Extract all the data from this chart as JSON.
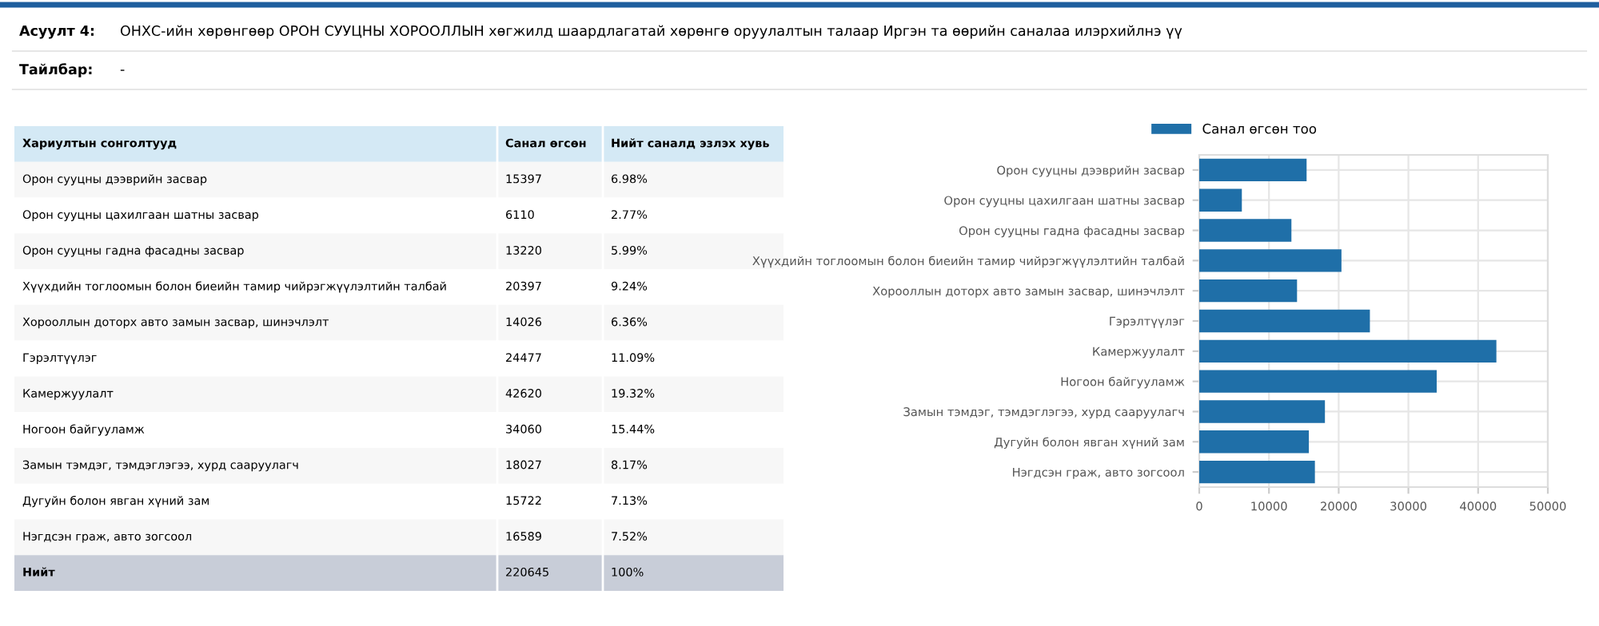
{
  "chart_data": [
    {
      "type": "other",
      "annotations": [
        "Асуулт 4:",
        "ОНХС-ийн хөрөнгөөр ОРОН СУУЦНЫ ХОРООЛЛЫН хөгжилд шаардлагатай хөрөнгө оруулалтын талаар Иргэн та өөрийн саналаа илэрхийлнэ үү",
        "Тайлбар:",
        "-"
      ]
    },
    {
      "type": "other",
      "annotations": [
        "Хариултын сонголтууд",
        "Нийт",
        "220645",
        "100%"
      ],
      "categories": [
        "Орон сууцны дээврийн засвар",
        "Орон сууцны цахилгаан шатны засвар",
        "Орон сууцны гадна фасадны засвар",
        "Хүүхдийн тоглоомын болон биеийн тамир чийрэгжүүлэлтийн талбай",
        "Хорооллын доторх авто замын засвар, шинэчлэлт",
        "Гэрэлтүүлэг",
        "Камержуулалт",
        "Ногоон байгууламж",
        "Замын тэмдэг, тэмдэглэгээ, хурд сааруулагч",
        "Дугуйн болон явган хүний зам",
        "Нэгдсэн граж, авто зогсоол"
      ],
      "series": [
        {
          "name": "Санал өгсөн",
          "values": [
            15397,
            6110,
            13220,
            20397,
            14026,
            24477,
            42620,
            34060,
            18027,
            15722,
            16589
          ]
        },
        {
          "name": "Нийт саналд эзлэх хувь",
          "values": [
            6.98,
            2.77,
            5.99,
            9.24,
            6.36,
            11.09,
            19.32,
            15.44,
            8.17,
            7.13,
            7.52
          ],
          "value_labels": [
            "6.98%",
            "2.77%",
            "5.99%",
            "9.24%",
            "6.36%",
            "11.09%",
            "19.32%",
            "15.44%",
            "8.17%",
            "7.13%",
            "7.52%"
          ]
        }
      ],
      "data_labels": true
    },
    {
      "type": "bar",
      "orientation": "horizontal",
      "categories": [
        "Орон сууцны дээврийн засвар",
        "Орон сууцны цахилгаан шатны засвар",
        "Орон сууцны гадна фасадны засвар",
        "Хүүхдийн тоглоомын болон биеийн тамир чийрэгжүүлэлтийн талбай",
        "Хорооллын доторх авто замын засвар, шинэчлэлт",
        "Гэрэлтүүлэг",
        "Камержуулалт",
        "Ногоон байгууламж",
        "Замын тэмдэг, тэмдэглэгээ, хурд сааруулагч",
        "Дугуйн болон явган хүний зам",
        "Нэгдсэн граж, авто зогсоол"
      ],
      "series": [
        {
          "name": "Санал өгсөн тоо",
          "color": "#1f6fa8",
          "values": [
            15397,
            6110,
            13220,
            20397,
            14026,
            24477,
            42620,
            34060,
            18027,
            15722,
            16589
          ]
        }
      ],
      "xlim": [
        0,
        50000
      ],
      "xticks": [
        0,
        10000,
        20000,
        30000,
        40000,
        50000
      ],
      "grid": true,
      "legend": "top"
    }
  ]
}
